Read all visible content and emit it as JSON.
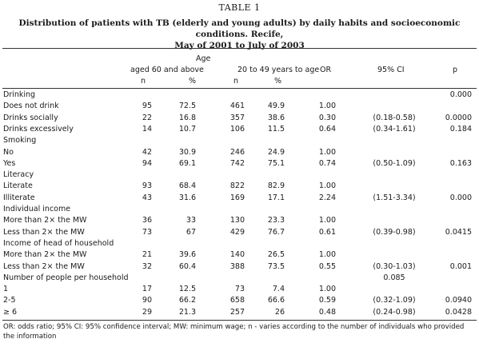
{
  "title": "TABLE 1",
  "caption": [
    "Distribution of patients with TB (elderly and young adults) by daily habits and socioeconomic conditions. Recife,",
    "May of 2001 to July of 2003"
  ],
  "header": {
    "age": "Age",
    "group_old": "aged 60 and above",
    "group_young": "20 to 49 years to age",
    "or": "OR",
    "ci": "95% CI",
    "p": "p",
    "n_old": "n",
    "pct_old": "%",
    "n_young": "n",
    "pct_young": "%"
  },
  "rows": [
    {
      "label": "Drinking",
      "n1": "",
      "p1": "",
      "n2": "",
      "p2": "",
      "or": "",
      "ci": "",
      "p": "0.000"
    },
    {
      "label": "Does not drink",
      "n1": "95",
      "p1": "72.5",
      "n2": "461",
      "p2": "49.9",
      "or": "1.00",
      "ci": "",
      "p": ""
    },
    {
      "label": "Drinks socially",
      "n1": "22",
      "p1": "16.8",
      "n2": "357",
      "p2": "38.6",
      "or": "0.30",
      "ci": "(0.18-0.58)",
      "p": "0.0000"
    },
    {
      "label": "Drinks excessively",
      "n1": "14",
      "p1": "10.7",
      "n2": "106",
      "p2": "11.5",
      "or": "0.64",
      "ci": "(0.34-1.61)",
      "p": "0.184"
    },
    {
      "label": "Smoking",
      "n1": "",
      "p1": "",
      "n2": "",
      "p2": "",
      "or": "",
      "ci": "",
      "p": ""
    },
    {
      "label": "No",
      "n1": "42",
      "p1": "30.9",
      "n2": "246",
      "p2": "24.9",
      "or": "1.00",
      "ci": "",
      "p": ""
    },
    {
      "label": "Yes",
      "n1": "94",
      "p1": "69.1",
      "n2": "742",
      "p2": "75.1",
      "or": "0.74",
      "ci": "(0.50-1.09)",
      "p": "0.163"
    },
    {
      "label": "Literacy",
      "n1": "",
      "p1": "",
      "n2": "",
      "p2": "",
      "or": "",
      "ci": "",
      "p": ""
    },
    {
      "label": "Literate",
      "n1": "93",
      "p1": "68.4",
      "n2": "822",
      "p2": "82.9",
      "or": "1.00",
      "ci": "",
      "p": ""
    },
    {
      "label": "Illiterate",
      "n1": "43",
      "p1": "31.6",
      "n2": "169",
      "p2": "17.1",
      "or": "2.24",
      "ci": "(1.51-3.34)",
      "p": "0.000"
    },
    {
      "label": "Individual income",
      "n1": "",
      "p1": "",
      "n2": "",
      "p2": "",
      "or": "",
      "ci": "",
      "p": ""
    },
    {
      "label": "More than 2× the MW",
      "n1": "36",
      "p1": "33",
      "n2": "130",
      "p2": "23.3",
      "or": "1.00",
      "ci": "",
      "p": ""
    },
    {
      "label": "Less than 2× the MW",
      "n1": "73",
      "p1": "67",
      "n2": "429",
      "p2": "76.7",
      "or": "0.61",
      "ci": "(0.39-0.98)",
      "p": "0.0415"
    },
    {
      "label": "Income of head of household",
      "n1": "",
      "p1": "",
      "n2": "",
      "p2": "",
      "or": "",
      "ci": "",
      "p": ""
    },
    {
      "label": "More than 2× the MW",
      "n1": "21",
      "p1": "39.6",
      "n2": "140",
      "p2": "26.5",
      "or": "1.00",
      "ci": "",
      "p": ""
    },
    {
      "label": "Less than 2× the MW",
      "n1": "32",
      "p1": "60.4",
      "n2": "388",
      "p2": "73.5",
      "or": "0.55",
      "ci": "(0.30-1.03)",
      "p": "0.001"
    },
    {
      "label": "Number of people per household",
      "n1": "",
      "p1": "",
      "n2": "",
      "p2": "",
      "or": "",
      "ci": "0.085",
      "p": ""
    },
    {
      "label": "1",
      "n1": "17",
      "p1": "12.5",
      "n2": "73",
      "p2": "7.4",
      "or": "1.00",
      "ci": "",
      "p": ""
    },
    {
      "label": "2-5",
      "n1": "90",
      "p1": "66.2",
      "n2": "658",
      "p2": "66.6",
      "or": "0.59",
      "ci": "(0.32-1.09)",
      "p": "0.0940"
    },
    {
      "label": "≥ 6",
      "n1": "29",
      "p1": "21.3",
      "n2": "257",
      "p2": "26",
      "or": "0.48",
      "ci": "(0.24-0.98)",
      "p": "0.0428"
    }
  ],
  "footnote": "OR: odds ratio; 95% CI: 95% confidence interval; MW: minimum wage; n - varies according to the number of individuals who provided the information"
}
